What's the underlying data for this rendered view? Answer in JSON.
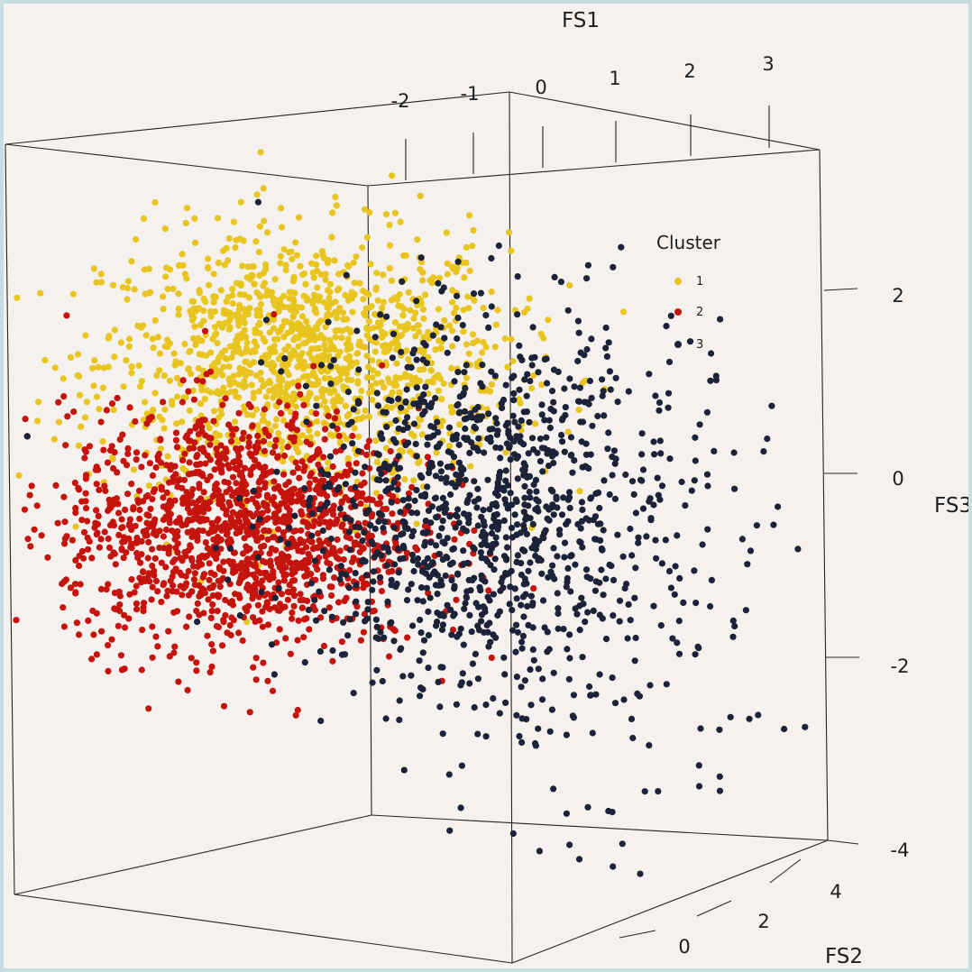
{
  "chart_data": {
    "type": "scatter",
    "projection": "3d",
    "axes": {
      "x": {
        "label": "FS1",
        "ticks": [
          "-2",
          "-1",
          "0",
          "1",
          "2",
          "3"
        ],
        "range": [
          -2.5,
          3.5
        ]
      },
      "y": {
        "label": "FS2",
        "ticks": [
          "0",
          "2",
          "4"
        ],
        "range": [
          -1,
          5
        ]
      },
      "z": {
        "label": "FS3",
        "ticks": [
          "2",
          "0",
          "-2",
          "-4"
        ],
        "range": [
          -4,
          3
        ]
      }
    },
    "legend": {
      "title": "Cluster",
      "placement": "top-right inside",
      "items": [
        "1",
        "2",
        "3"
      ]
    },
    "series": [
      {
        "name": "1",
        "color": "#e8c51f",
        "count": 1400,
        "center": {
          "FS1": -1.9,
          "FS3": 1.2
        },
        "spread": {
          "FS1": 0.8,
          "FS3": 0.7
        }
      },
      {
        "name": "2",
        "color": "#c4140d",
        "count": 1500,
        "center": {
          "FS1": -2.4,
          "FS3": -0.6
        },
        "spread": {
          "FS1": 0.7,
          "FS3": 0.65
        }
      },
      {
        "name": "3",
        "color": "#1c2238",
        "count": 1200,
        "center": {
          "FS1": -0.5,
          "FS3": -0.4
        },
        "spread": {
          "FS1": 0.75,
          "FS3": 1.05
        }
      }
    ]
  }
}
